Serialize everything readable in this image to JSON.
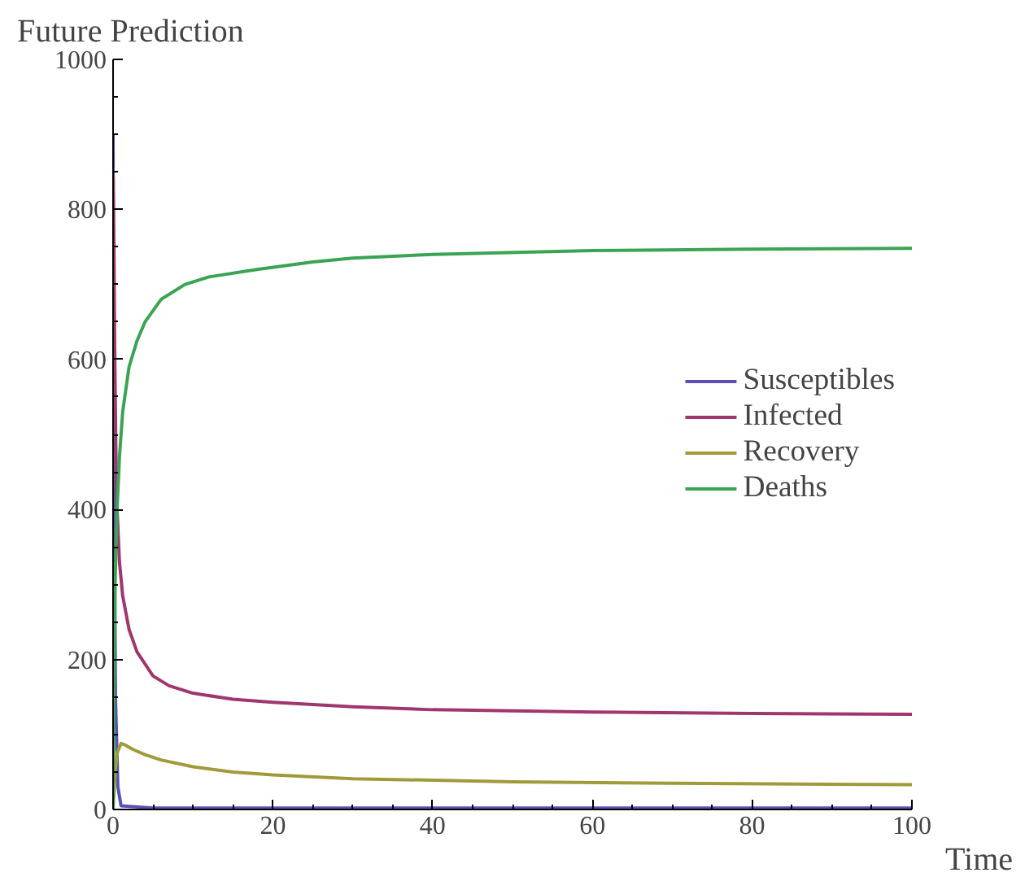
{
  "chart_data": {
    "type": "line",
    "xlabel": "Time",
    "ylabel": "Future Prediction",
    "xlim": [
      0,
      100
    ],
    "ylim": [
      0,
      1000
    ],
    "xticks": [
      0,
      20,
      40,
      60,
      80,
      100
    ],
    "yticks": [
      0,
      200,
      400,
      600,
      800,
      1000
    ],
    "legend": "right",
    "grid": false,
    "line_style": "solid",
    "marker": "none",
    "series": [
      {
        "name": "Susceptibles",
        "color": "#5a4fb5",
        "x": [
          0,
          0.1,
          0.3,
          0.6,
          1,
          5,
          20,
          50,
          100
        ],
        "values": [
          900,
          500,
          150,
          30,
          5,
          2,
          2,
          2,
          2
        ]
      },
      {
        "name": "Infected",
        "color": "#a0366e",
        "x": [
          0,
          0.1,
          0.2,
          0.35,
          0.5,
          0.8,
          1.2,
          2,
          3,
          5,
          7,
          10,
          15,
          20,
          30,
          40,
          60,
          80,
          100
        ],
        "values": [
          850,
          760,
          620,
          480,
          400,
          330,
          285,
          240,
          210,
          178,
          165,
          155,
          147,
          143,
          137,
          133,
          130,
          128,
          127
        ]
      },
      {
        "name": "Recovery",
        "color": "#a09a3a",
        "x": [
          0,
          0.2,
          0.5,
          1,
          1.5,
          2.5,
          4,
          6,
          10,
          15,
          20,
          30,
          50,
          70,
          100
        ],
        "values": [
          0,
          40,
          75,
          88,
          86,
          80,
          73,
          66,
          57,
          50,
          46,
          41,
          37,
          35,
          33
        ]
      },
      {
        "name": "Deaths",
        "color": "#3ba453",
        "x": [
          0,
          0.1,
          0.25,
          0.5,
          0.8,
          1.2,
          2,
          3,
          4,
          6,
          9,
          12,
          18,
          25,
          30,
          40,
          60,
          80,
          100
        ],
        "values": [
          0,
          150,
          300,
          400,
          470,
          530,
          590,
          625,
          650,
          680,
          700,
          710,
          720,
          730,
          735,
          740,
          745,
          747,
          748
        ]
      }
    ]
  }
}
